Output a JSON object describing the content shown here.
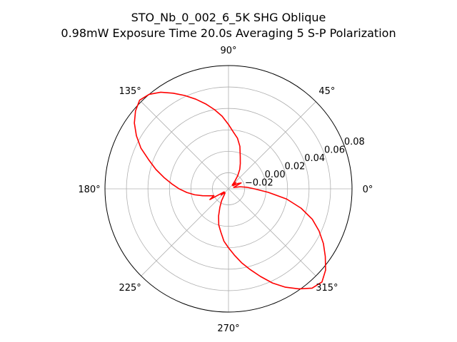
{
  "chart_data": {
    "type": "line",
    "projection": "polar",
    "title": "STO_Nb_0_002_6_5K SHG Oblique",
    "subtitle": "0.98mW Exposure Time 20.0s Averaging 5 S-P  Polarization",
    "grid": true,
    "line_color": "#ff0000",
    "r_range": [
      -0.035,
      0.08
    ],
    "r_ticks": [
      -0.02,
      0.0,
      0.02,
      0.04,
      0.06,
      0.08
    ],
    "r_tick_labels": [
      "−0.02",
      "0.00",
      "0.02",
      "0.04",
      "0.06",
      "0.08"
    ],
    "theta_ticks": [
      0,
      45,
      90,
      135,
      180,
      225,
      270,
      315
    ],
    "theta_tick_labels": [
      "0°",
      "45°",
      "90°",
      "135°",
      "180°",
      "225°",
      "270°",
      "315°"
    ],
    "series": [
      {
        "theta_deg": [
          0,
          5,
          10,
          15,
          20,
          25,
          30,
          35,
          40,
          45,
          50,
          55,
          60,
          65,
          70,
          75,
          80,
          85,
          90,
          95,
          100,
          105,
          110,
          115,
          120,
          125,
          130,
          135,
          140,
          145,
          150,
          155,
          160,
          165,
          170,
          175,
          180,
          185,
          190,
          195,
          200,
          205,
          210,
          215,
          220,
          225,
          230,
          235,
          240,
          245,
          250,
          255,
          260,
          265,
          270,
          275,
          280,
          285,
          290,
          295,
          300,
          305,
          310,
          315,
          320,
          325,
          330,
          335,
          340,
          345,
          350,
          355,
          360
        ],
        "r": [
          -0.011,
          -0.018,
          -0.024,
          -0.03,
          -0.028,
          -0.022,
          -0.025,
          -0.03,
          -0.026,
          -0.03,
          -0.026,
          -0.02,
          -0.014,
          -0.009,
          -0.003,
          0.006,
          0.013,
          0.018,
          0.025,
          0.033,
          0.04,
          0.047,
          0.054,
          0.061,
          0.068,
          0.075,
          0.08,
          0.082,
          0.078,
          0.072,
          0.064,
          0.055,
          0.044,
          0.035,
          0.026,
          0.018,
          0.011,
          0.004,
          -0.003,
          -0.01,
          -0.016,
          -0.02,
          -0.015,
          -0.03,
          -0.026,
          -0.03,
          -0.03,
          -0.028,
          -0.022,
          -0.016,
          -0.008,
          0.0,
          0.006,
          0.014,
          0.02,
          0.027,
          0.035,
          0.043,
          0.052,
          0.062,
          0.071,
          0.079,
          0.086,
          0.088,
          0.083,
          0.075,
          0.067,
          0.058,
          0.048,
          0.035,
          0.02,
          0.002,
          -0.011
        ]
      }
    ]
  }
}
